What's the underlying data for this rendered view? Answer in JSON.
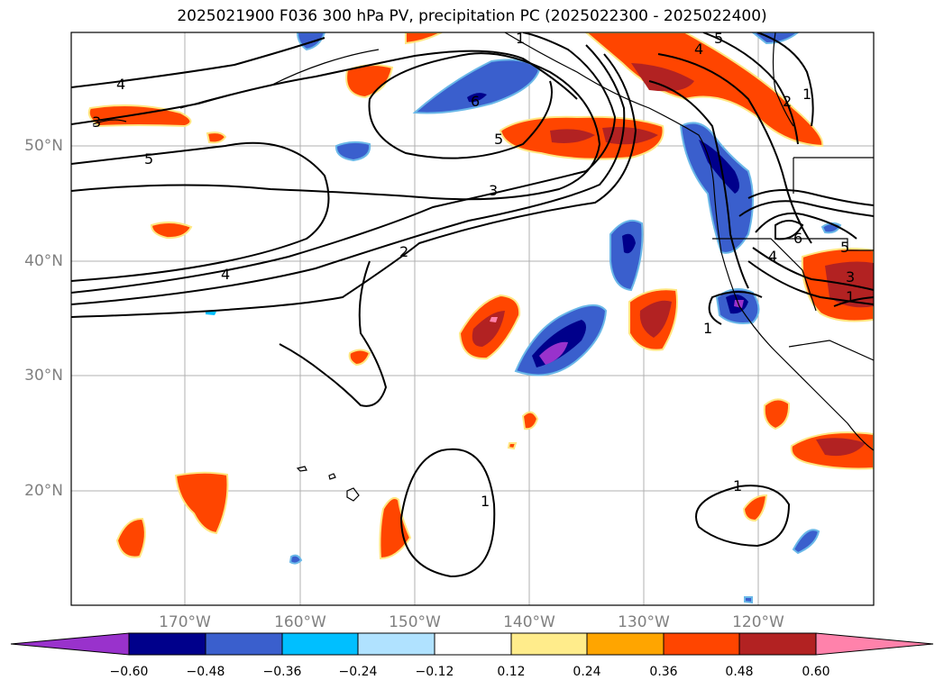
{
  "title": "2025021900 F036 300 hPa PV, precipitation PC (2025022300 - 2025022400)",
  "map": {
    "lat_labels": [
      "50°N",
      "40°N",
      "30°N",
      "20°N"
    ],
    "lon_labels": [
      "170°W",
      "160°W",
      "150°W",
      "140°W",
      "130°W",
      "120°W"
    ],
    "pv_contour_labels": [
      "4",
      "3",
      "5",
      "4",
      "2",
      "3",
      "5",
      "6",
      "1",
      "4",
      "5",
      "2",
      "1",
      "6",
      "4",
      "5",
      "3",
      "1",
      "1",
      "1",
      "1"
    ]
  },
  "colorbar": {
    "ticks": [
      "−0.60",
      "−0.48",
      "−0.36",
      "−0.24",
      "−0.12",
      "0.12",
      "0.24",
      "0.36",
      "0.48",
      "0.60"
    ],
    "colors": [
      "#9932cc",
      "#00008b",
      "#3a5fcd",
      "#00bfff",
      "#b0e2ff",
      "#ffffff",
      "#ffec8b",
      "#ffa500",
      "#ff4500",
      "#b22222",
      "#ff82ab"
    ]
  }
}
